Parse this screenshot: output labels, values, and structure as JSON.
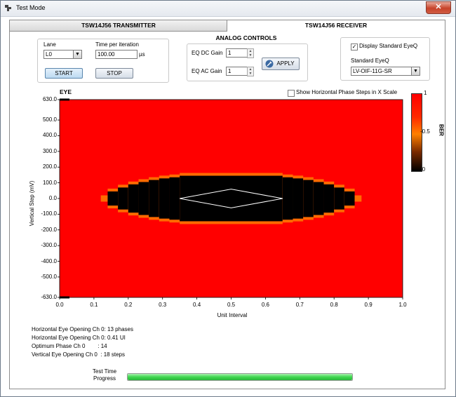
{
  "window": {
    "title": "Test Mode",
    "close_glyph": "✕"
  },
  "tabs": [
    {
      "label": "TSW14J56 TRANSMITTER",
      "active": false
    },
    {
      "label": "TSW14J56 RECEIVER",
      "active": true
    }
  ],
  "lane_panel": {
    "lane_label": "Lane",
    "lane_value": "L0",
    "time_label": "Time per iteration",
    "time_value": "100.00",
    "time_unit": "µs",
    "start_label": "START",
    "stop_label": "STOP"
  },
  "analog": {
    "title": "ANALOG CONTROLS",
    "dc_label": "EQ DC Gain",
    "dc_value": "1",
    "ac_label": "EQ AC Gain",
    "ac_value": "1",
    "apply_label": "APPLY"
  },
  "eyeq": {
    "display_label": "Display Standard EyeQ",
    "display_checked": true,
    "standard_label": "Standard EyeQ",
    "standard_value": "LV-OIF-11G-SR"
  },
  "chart_data": {
    "type": "heatmap",
    "title": "EYE",
    "xlabel": "Unit Interval",
    "ylabel": "Vertical Step (mV)",
    "xlim": [
      0,
      1
    ],
    "ylim": [
      -630,
      630
    ],
    "x_ticks": [
      "0.0",
      "0.1",
      "0.2",
      "0.3",
      "0.4",
      "0.5",
      "0.6",
      "0.7",
      "0.8",
      "0.9",
      "1.0"
    ],
    "y_ticks": [
      "630.0",
      "500.0",
      "400.0",
      "300.0",
      "200.0",
      "100.0",
      "0.0",
      "-100.0",
      "-200.0",
      "-300.0",
      "-400.0",
      "-500.0",
      "-630.0"
    ],
    "colorbar": {
      "label": "BER",
      "ticks": [
        "1",
        "0.5",
        "0"
      ],
      "min": 0,
      "max": 1
    },
    "background_ber": 1,
    "eye_opening": [
      {
        "x_start": 0.12,
        "x_end": 0.14,
        "half_height_mv": 20,
        "ber": 0.5
      },
      {
        "x_start": 0.14,
        "x_end": 0.17,
        "half_height_mv": 45,
        "ber": 0
      },
      {
        "x_start": 0.17,
        "x_end": 0.2,
        "half_height_mv": 70,
        "ber": 0
      },
      {
        "x_start": 0.2,
        "x_end": 0.23,
        "half_height_mv": 90,
        "ber": 0
      },
      {
        "x_start": 0.23,
        "x_end": 0.26,
        "half_height_mv": 105,
        "ber": 0
      },
      {
        "x_start": 0.26,
        "x_end": 0.29,
        "half_height_mv": 118,
        "ber": 0
      },
      {
        "x_start": 0.29,
        "x_end": 0.32,
        "half_height_mv": 128,
        "ber": 0
      },
      {
        "x_start": 0.32,
        "x_end": 0.35,
        "half_height_mv": 135,
        "ber": 0
      },
      {
        "x_start": 0.35,
        "x_end": 0.65,
        "half_height_mv": 145,
        "ber": 0
      },
      {
        "x_start": 0.65,
        "x_end": 0.68,
        "half_height_mv": 135,
        "ber": 0
      },
      {
        "x_start": 0.68,
        "x_end": 0.71,
        "half_height_mv": 128,
        "ber": 0
      },
      {
        "x_start": 0.71,
        "x_end": 0.74,
        "half_height_mv": 118,
        "ber": 0
      },
      {
        "x_start": 0.74,
        "x_end": 0.77,
        "half_height_mv": 105,
        "ber": 0
      },
      {
        "x_start": 0.77,
        "x_end": 0.8,
        "half_height_mv": 90,
        "ber": 0
      },
      {
        "x_start": 0.8,
        "x_end": 0.83,
        "half_height_mv": 70,
        "ber": 0
      },
      {
        "x_start": 0.83,
        "x_end": 0.86,
        "half_height_mv": 45,
        "ber": 0
      },
      {
        "x_start": 0.86,
        "x_end": 0.88,
        "half_height_mv": 20,
        "ber": 0.5
      }
    ],
    "eye_mask": [
      [
        0.35,
        0
      ],
      [
        0.5,
        60
      ],
      [
        0.65,
        0
      ],
      [
        0.5,
        -60
      ]
    ],
    "show_phase_steps_label": "Show Horizontal Phase Steps in X Scale",
    "show_phase_steps_checked": false
  },
  "stats": [
    "Horizontal Eye Opening Ch 0: 13 phases",
    "Horizontal Eye Opening Ch 0: 0.41 UI",
    "Optimum Phase Ch 0        : 14",
    "Vertical Eye Opening Ch 0  : 18 steps"
  ],
  "progress": {
    "label_line1": "Test Time",
    "label_line2": "Progress",
    "fraction": 1.0
  },
  "colors": {
    "hot": "#ff0000",
    "mid": "#ff6a00",
    "cold": "#000000",
    "progress": "#3fd74f"
  }
}
